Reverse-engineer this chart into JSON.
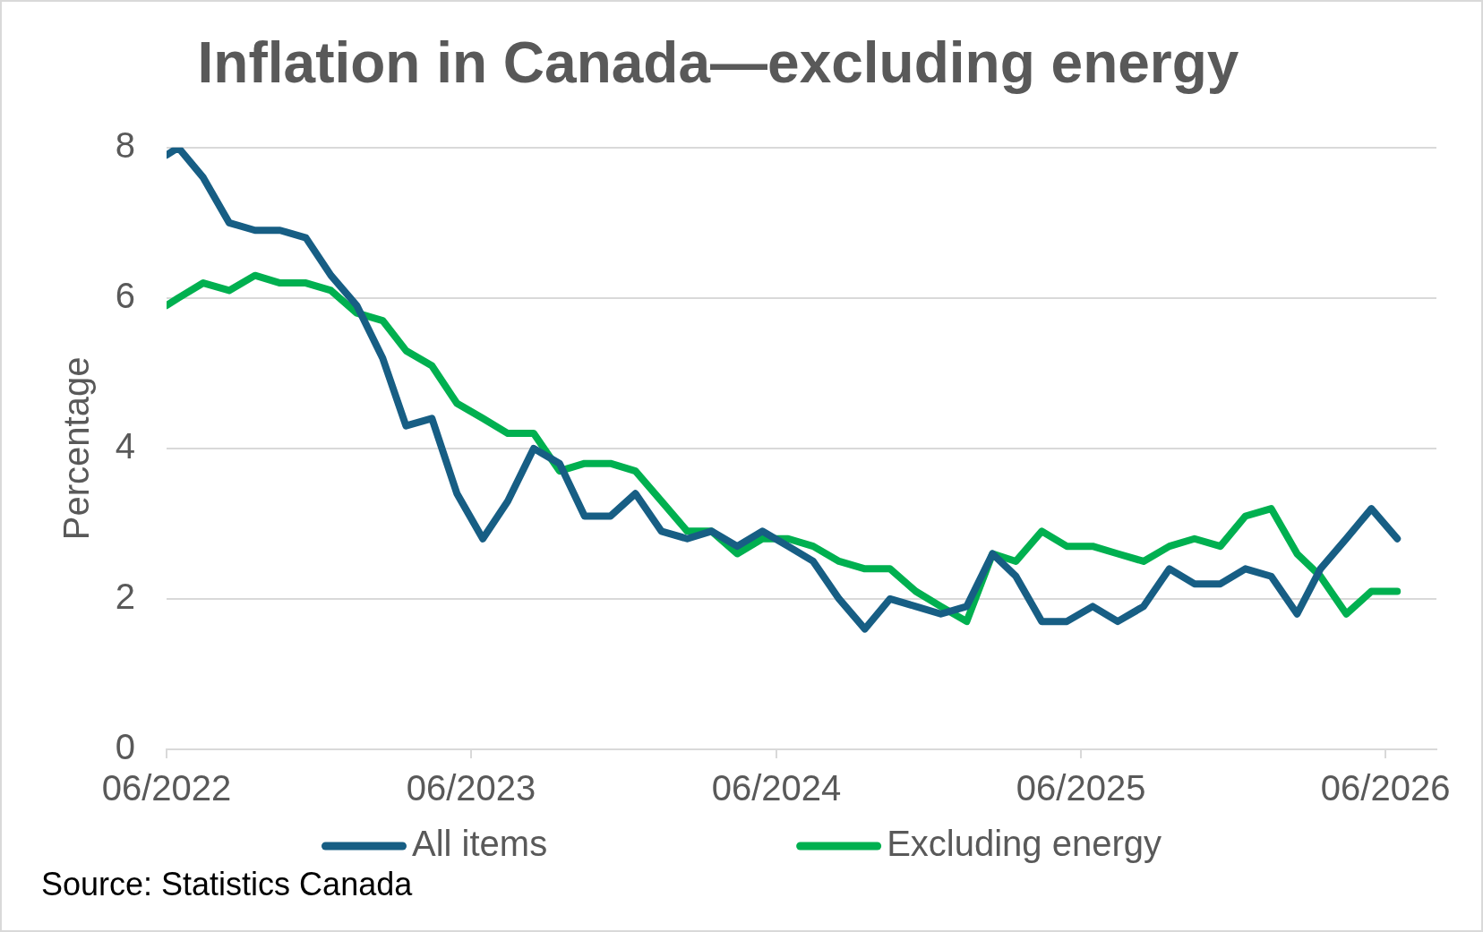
{
  "chart_data": {
    "type": "line",
    "title": "Inflation in Canada—excluding energy",
    "ylabel": "Percentage",
    "annotations": [
      "Source: Statistics Canada"
    ],
    "x": [
      "2022-06-01",
      "2022-06-15",
      "2022-07-15",
      "2022-08-15",
      "2022-09-15",
      "2022-10-15",
      "2022-11-15",
      "2022-12-15",
      "2023-01-15",
      "2023-02-15",
      "2023-03-15",
      "2023-04-15",
      "2023-05-15",
      "2023-06-15",
      "2023-07-15",
      "2023-08-15",
      "2023-09-15",
      "2023-10-15",
      "2023-11-15",
      "2023-12-15",
      "2024-01-15",
      "2024-02-15",
      "2024-03-15",
      "2024-04-15",
      "2024-05-15",
      "2024-06-15",
      "2024-07-15",
      "2024-08-15",
      "2024-09-15",
      "2024-10-15",
      "2024-11-15",
      "2024-12-15",
      "2025-01-15",
      "2025-02-15",
      "2025-03-15",
      "2025-04-15",
      "2025-05-15",
      "2025-06-15",
      "2025-07-15",
      "2025-08-15",
      "2025-09-15",
      "2025-10-15",
      "2025-11-15",
      "2025-12-15",
      "2026-01-15",
      "2026-02-15",
      "2026-03-15",
      "2026-04-15",
      "2026-05-15",
      "2026-06-15"
    ],
    "series": [
      {
        "name": "All items",
        "color": "#175e84",
        "values": [
          7.9,
          8.0,
          7.6,
          7.0,
          6.9,
          6.9,
          6.8,
          6.3,
          5.9,
          5.2,
          4.3,
          4.4,
          3.4,
          2.8,
          3.3,
          4.0,
          3.8,
          3.1,
          3.1,
          3.4,
          2.9,
          2.8,
          2.9,
          2.7,
          2.9,
          2.7,
          2.5,
          2.0,
          1.6,
          2.0,
          1.9,
          1.8,
          1.9,
          2.6,
          2.3,
          1.7,
          1.7,
          1.9,
          1.7,
          1.9,
          2.4,
          2.2,
          2.2,
          2.4,
          2.3,
          1.8,
          2.4,
          2.8,
          3.2,
          2.8
        ]
      },
      {
        "name": "Excluding energy",
        "color": "#00b050",
        "values": [
          5.9,
          6.0,
          6.2,
          6.1,
          6.3,
          6.2,
          6.2,
          6.1,
          5.8,
          5.7,
          5.3,
          5.1,
          4.6,
          4.4,
          4.2,
          4.2,
          3.7,
          3.8,
          3.8,
          3.7,
          3.3,
          2.9,
          2.9,
          2.6,
          2.8,
          2.8,
          2.7,
          2.5,
          2.4,
          2.4,
          2.1,
          1.9,
          1.7,
          2.6,
          2.5,
          2.9,
          2.7,
          2.7,
          2.6,
          2.5,
          2.7,
          2.8,
          2.7,
          3.1,
          3.2,
          2.6,
          2.3,
          1.8,
          2.1,
          2.1
        ]
      }
    ],
    "xlim": [
      "2022-06",
      "2026-08"
    ],
    "xticks": [
      {
        "value": "2022-06",
        "label": "06/2022"
      },
      {
        "value": "2023-06",
        "label": "06/2023"
      },
      {
        "value": "2024-06",
        "label": "06/2024"
      },
      {
        "value": "2025-06",
        "label": "06/2025"
      },
      {
        "value": "2026-06",
        "label": "06/2026"
      }
    ],
    "ylim": [
      0,
      8
    ],
    "yticks": [
      0,
      2,
      4,
      6,
      8
    ],
    "grid": "y",
    "legend": "bottom",
    "marker": "none",
    "line_style": "solid"
  }
}
